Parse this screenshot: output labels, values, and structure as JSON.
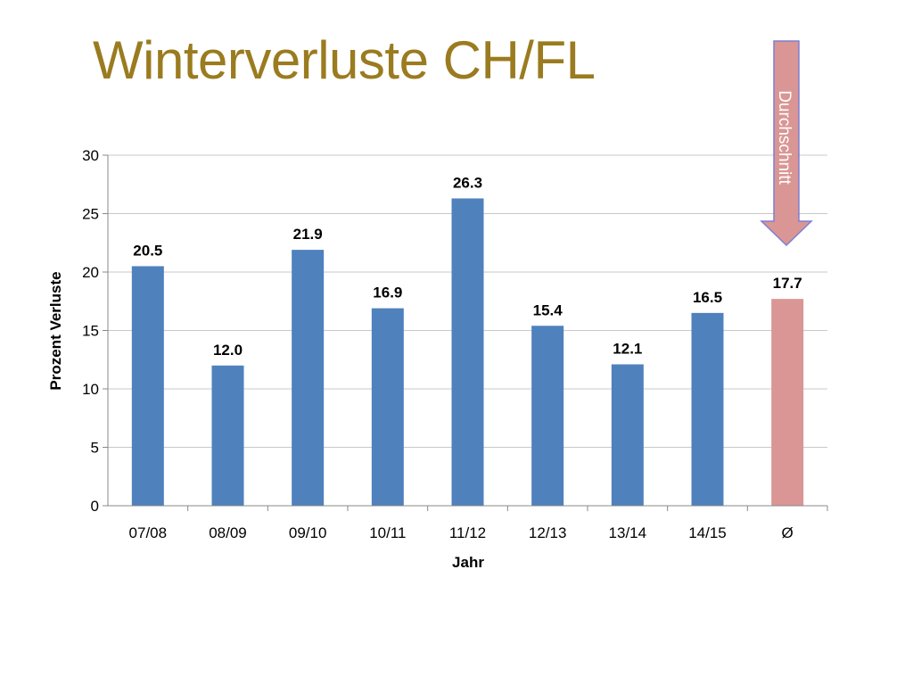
{
  "title": "Winterverluste CH/FL",
  "annotation": {
    "label": "Durchschnitt",
    "color": "#d99694",
    "border": "#7f7fd0"
  },
  "colors": {
    "bar": "#4f81bd",
    "average_bar": "#d99694",
    "title": "#9a7b1f",
    "grid": "#c8c8c8"
  },
  "chart_data": {
    "type": "bar",
    "categories": [
      "07/08",
      "08/09",
      "09/10",
      "10/11",
      "11/12",
      "12/13",
      "13/14",
      "14/15",
      "Ø"
    ],
    "values": [
      20.5,
      12.0,
      21.9,
      16.9,
      26.3,
      15.4,
      12.1,
      16.5,
      17.7
    ],
    "data_labels": [
      "20.5",
      "12.0",
      "21.9",
      "16.9",
      "26.3",
      "15.4",
      "12.1",
      "16.5",
      "17.7"
    ],
    "highlight_index": 8,
    "title": "",
    "xlabel": "Jahr",
    "ylabel": "Prozent Verluste",
    "ylim": [
      0,
      30
    ],
    "yticks": [
      0,
      5,
      10,
      15,
      20,
      25,
      30
    ],
    "grid": true,
    "legend": "none"
  }
}
